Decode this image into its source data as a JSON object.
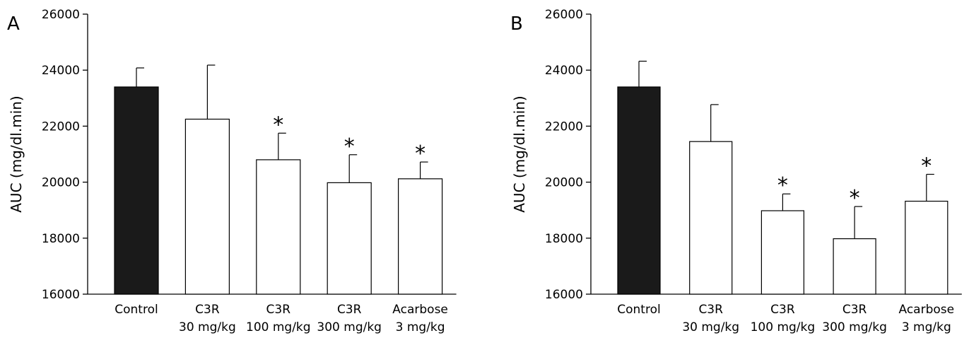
{
  "chart_data": [
    {
      "type": "bar",
      "panel_label": "A",
      "ylabel": "AUC (mg/dl.min)",
      "xlabel": "",
      "ylim": [
        16000,
        26000
      ],
      "yticks": [
        16000,
        18000,
        20000,
        22000,
        24000,
        26000
      ],
      "categories": [
        {
          "line1": "Control",
          "line2": ""
        },
        {
          "line1": "C3R",
          "line2": "30 mg/kg"
        },
        {
          "line1": "C3R",
          "line2": "100 mg/kg"
        },
        {
          "line1": "C3R",
          "line2": "300 mg/kg"
        },
        {
          "line1": "Acarbose",
          "line2": "3 mg/kg"
        }
      ],
      "values": [
        23400,
        22250,
        20800,
        19980,
        20120
      ],
      "errors": [
        680,
        1930,
        950,
        1000,
        600
      ],
      "significant": [
        false,
        false,
        true,
        true,
        true
      ],
      "significance_marker": "*",
      "bar_colors": [
        "#1a1a1a",
        "#ffffff",
        "#ffffff",
        "#ffffff",
        "#ffffff"
      ],
      "grid": false
    },
    {
      "type": "bar",
      "panel_label": "B",
      "ylabel": "AUC (mg/dl.min)",
      "xlabel": "",
      "ylim": [
        16000,
        26000
      ],
      "yticks": [
        16000,
        18000,
        20000,
        22000,
        24000,
        26000
      ],
      "categories": [
        {
          "line1": "Control",
          "line2": ""
        },
        {
          "line1": "C3R",
          "line2": "30 mg/kg"
        },
        {
          "line1": "C3R",
          "line2": "100 mg/kg"
        },
        {
          "line1": "C3R",
          "line2": "300 mg/kg"
        },
        {
          "line1": "Acarbose",
          "line2": "3 mg/kg"
        }
      ],
      "values": [
        23400,
        21450,
        18980,
        17980,
        19320
      ],
      "errors": [
        920,
        1320,
        600,
        1150,
        960
      ],
      "significant": [
        false,
        false,
        true,
        true,
        true
      ],
      "significance_marker": "*",
      "bar_colors": [
        "#1a1a1a",
        "#ffffff",
        "#ffffff",
        "#ffffff",
        "#ffffff"
      ],
      "grid": false
    }
  ]
}
